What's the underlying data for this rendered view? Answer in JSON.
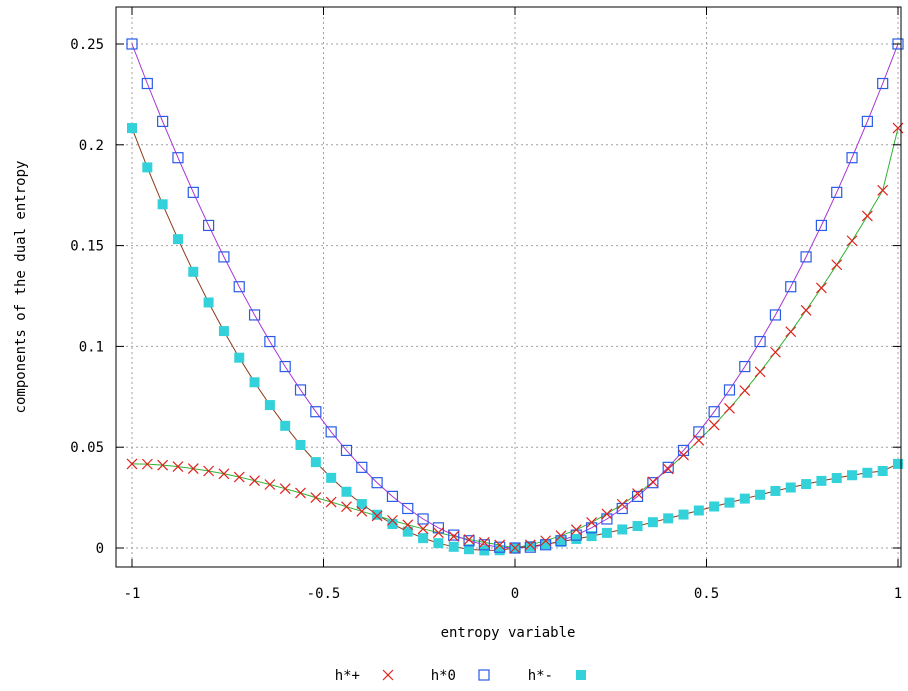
{
  "chart_data": {
    "type": "line",
    "xlabel": "entropy variable",
    "ylabel": "components of the dual entropy",
    "xlim": [
      -1,
      1
    ],
    "ylim": [
      -0.01,
      0.27
    ],
    "xticks": [
      -1,
      -0.5,
      0,
      0.5,
      1
    ],
    "xtick_labels": [
      "-1",
      "-0.5",
      "0",
      "0.5",
      "1"
    ],
    "yticks": [
      0,
      0.05,
      0.1,
      0.15,
      0.2,
      0.25
    ],
    "ytick_labels": [
      "0",
      "0.05",
      "0.1",
      "0.15",
      "0.2",
      "0.25"
    ],
    "grid": true,
    "legend_position": "bottom",
    "x": [
      -1.0,
      -0.96,
      -0.92,
      -0.88,
      -0.84,
      -0.8,
      -0.76,
      -0.72,
      -0.68,
      -0.64,
      -0.6,
      -0.56,
      -0.52,
      -0.48,
      -0.44,
      -0.4,
      -0.36,
      -0.32,
      -0.28,
      -0.24,
      -0.2,
      -0.16,
      -0.12,
      -0.08,
      -0.04,
      0.0,
      0.04,
      0.08,
      0.12,
      0.16,
      0.2,
      0.24,
      0.28,
      0.32,
      0.36,
      0.4,
      0.44,
      0.48,
      0.52,
      0.56,
      0.6,
      0.64,
      0.68,
      0.72,
      0.76,
      0.8,
      0.84,
      0.88,
      0.92,
      0.96,
      1.0
    ],
    "series": [
      {
        "name": "h*+",
        "marker": "x",
        "color": "#e0221d",
        "line_color": "#33b233",
        "values": [
          0.0417,
          0.0416,
          0.0411,
          0.0404,
          0.0394,
          0.0382,
          0.0368,
          0.0352,
          0.0334,
          0.0315,
          0.0294,
          0.0273,
          0.025,
          0.0228,
          0.0205,
          0.0182,
          0.0159,
          0.0137,
          0.0115,
          0.0095,
          0.0076,
          0.0058,
          0.0042,
          0.0028,
          0.0015,
          0.0,
          0.0016,
          0.0036,
          0.0061,
          0.0091,
          0.0127,
          0.0169,
          0.0217,
          0.027,
          0.0328,
          0.0392,
          0.0461,
          0.0534,
          0.061,
          0.0693,
          0.0781,
          0.0874,
          0.0971,
          0.1073,
          0.1179,
          0.129,
          0.1405,
          0.1524,
          0.1647,
          0.1774,
          0.2083
        ]
      },
      {
        "name": "h*0",
        "marker": "open-square",
        "color": "#2a5ce6",
        "line_color": "#a833d6",
        "values": [
          0.25,
          0.2304,
          0.2116,
          0.1936,
          0.1764,
          0.16,
          0.1444,
          0.1296,
          0.1156,
          0.1024,
          0.09,
          0.0784,
          0.0676,
          0.0576,
          0.0484,
          0.04,
          0.0324,
          0.0256,
          0.0196,
          0.0144,
          0.01,
          0.0064,
          0.0036,
          0.0016,
          0.0004,
          0.0,
          0.0004,
          0.0016,
          0.0036,
          0.0064,
          0.01,
          0.0144,
          0.0196,
          0.0256,
          0.0324,
          0.04,
          0.0484,
          0.0576,
          0.0676,
          0.0784,
          0.09,
          0.1024,
          0.1156,
          0.1296,
          0.1444,
          0.16,
          0.1764,
          0.1936,
          0.2116,
          0.2304,
          0.25
        ]
      },
      {
        "name": "h*-",
        "marker": "filled-square",
        "color": "#33d1d9",
        "line_color": "#8a3b18",
        "values": [
          0.2083,
          0.1888,
          0.1705,
          0.1532,
          0.137,
          0.1218,
          0.1076,
          0.0944,
          0.0822,
          0.0709,
          0.0606,
          0.0511,
          0.0426,
          0.0348,
          0.0279,
          0.0218,
          0.0165,
          0.0119,
          0.0081,
          0.0049,
          0.0024,
          0.0006,
          -0.0006,
          -0.0012,
          -0.0011,
          0.0,
          0.0009,
          0.0019,
          0.0031,
          0.0045,
          0.0059,
          0.0075,
          0.0092,
          0.0109,
          0.0128,
          0.0147,
          0.0166,
          0.0186,
          0.0206,
          0.0225,
          0.0245,
          0.0264,
          0.0283,
          0.03,
          0.0317,
          0.0333,
          0.0347,
          0.0361,
          0.0373,
          0.0382,
          0.0417
        ]
      }
    ]
  }
}
